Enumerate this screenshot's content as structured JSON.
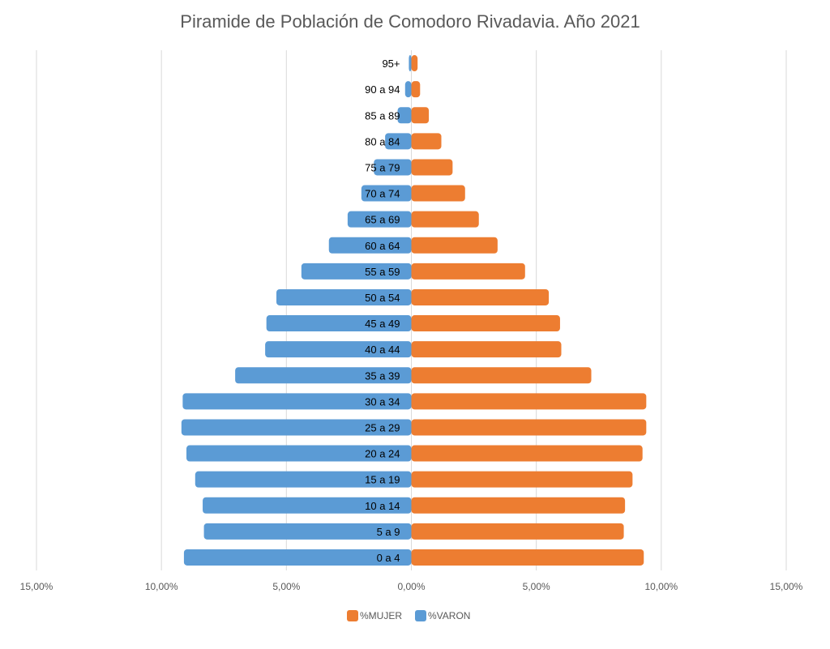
{
  "chart_data": {
    "type": "bar",
    "orientation": "horizontal-population-pyramid",
    "title": "Piramide de Población de Comodoro Rivadavia. Año 2021",
    "categories": [
      "0 a 4",
      "5 a 9",
      "10 a 14",
      "15 a 19",
      "20 a 24",
      "25 a 29",
      "30 a 34",
      "35 a 39",
      "40 a 44",
      "45 a 49",
      "50 a 54",
      "55 a 59",
      "60 a 64",
      "65 a 69",
      "70 a 74",
      "75 a 79",
      "80 a 84",
      "85 a 89",
      "90 a 94",
      "95+"
    ],
    "series": [
      {
        "name": "%MUJER",
        "color": "#ED7D31",
        "values": [
          9.3,
          8.5,
          8.55,
          8.85,
          9.25,
          9.4,
          9.4,
          7.2,
          6.0,
          5.95,
          5.5,
          4.55,
          3.45,
          2.7,
          2.15,
          1.65,
          1.2,
          0.7,
          0.35,
          0.25
        ]
      },
      {
        "name": "%VARON",
        "color": "#5B9BD5",
        "values": [
          -9.1,
          -8.3,
          -8.35,
          -8.65,
          -9.0,
          -9.2,
          -9.15,
          -7.05,
          -5.85,
          -5.8,
          -5.4,
          -4.4,
          -3.3,
          -2.55,
          -2.0,
          -1.5,
          -1.05,
          -0.55,
          -0.25,
          -0.1
        ]
      }
    ],
    "x_ticks": [
      "15,00%",
      "10,00%",
      "5,00%",
      "0,00%",
      "5,00%",
      "10,00%",
      "15,00%"
    ],
    "xlim": [
      -15,
      15
    ],
    "grid": true,
    "legend_position": "bottom",
    "legend": [
      "%MUJER",
      "%VARON"
    ]
  }
}
